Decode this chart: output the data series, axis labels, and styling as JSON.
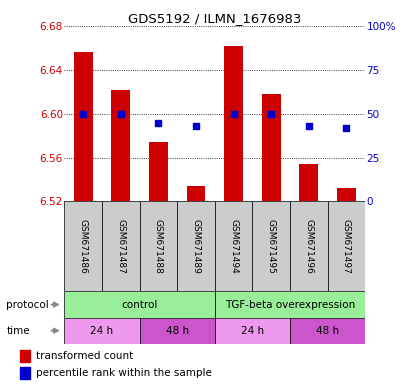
{
  "title": "GDS5192 / ILMN_1676983",
  "samples": [
    "GSM671486",
    "GSM671487",
    "GSM671488",
    "GSM671489",
    "GSM671494",
    "GSM671495",
    "GSM671496",
    "GSM671497"
  ],
  "bar_values": [
    6.657,
    6.622,
    6.574,
    6.534,
    6.662,
    6.618,
    6.554,
    6.532
  ],
  "percentile_values": [
    50,
    50,
    45,
    43,
    50,
    50,
    43,
    42
  ],
  "ylim_left": [
    6.52,
    6.68
  ],
  "ylim_right": [
    0,
    100
  ],
  "yticks_left": [
    6.52,
    6.56,
    6.6,
    6.64,
    6.68
  ],
  "yticks_right": [
    0,
    25,
    50,
    75,
    100
  ],
  "bar_color": "#cc0000",
  "dot_color": "#0000cc",
  "bar_bottom": 6.52,
  "protocol_data": [
    {
      "label": "control",
      "start": 0,
      "end": 4,
      "color": "#99ee99"
    },
    {
      "label": "TGF-beta overexpression",
      "start": 4,
      "end": 8,
      "color": "#99ee99"
    }
  ],
  "time_data": [
    {
      "label": "24 h",
      "start": 0,
      "end": 2,
      "color": "#ee99ee"
    },
    {
      "label": "48 h",
      "start": 2,
      "end": 4,
      "color": "#cc55cc"
    },
    {
      "label": "24 h",
      "start": 4,
      "end": 6,
      "color": "#ee99ee"
    },
    {
      "label": "48 h",
      "start": 6,
      "end": 8,
      "color": "#cc55cc"
    }
  ],
  "sample_area_color": "#cccccc",
  "left_axis_color": "#cc0000",
  "right_axis_color": "#0000cc",
  "bg_color": "#ffffff"
}
